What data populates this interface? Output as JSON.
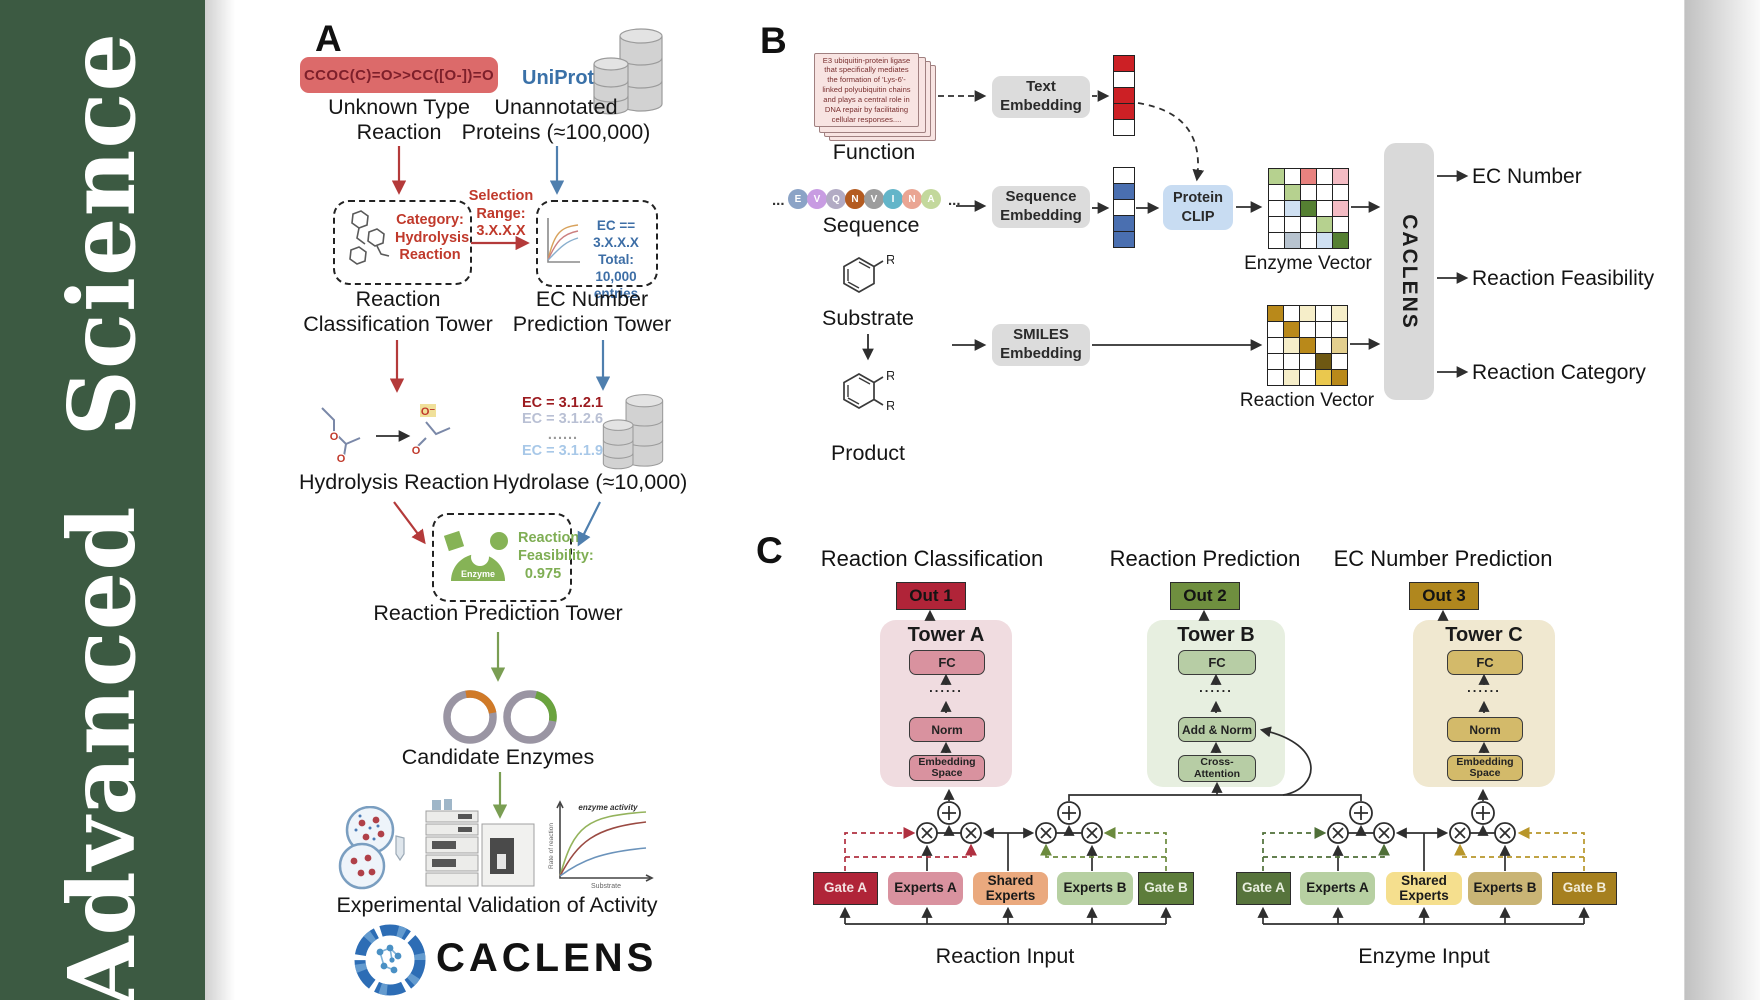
{
  "sidebar": {
    "text": "Advanced Science",
    "bg_color": "#3c5a42",
    "text_color": "#ffffff"
  },
  "panel_a": {
    "label": "A",
    "smiles": "CCOC(C)=O>>CC([O-])=O",
    "unknown_type": [
      "Unknown Type",
      "Reaction"
    ],
    "uniprot": "UniProt",
    "unannotated": [
      "Unannotated",
      "Proteins (≈100,000)"
    ],
    "category_box": [
      "Category:",
      "Hydrolysis",
      "Reaction"
    ],
    "selection": [
      "Selection",
      "Range:",
      "3.X.X.X"
    ],
    "ec_box": [
      "EC == 3.X.X.X",
      "Total: 10,000",
      "entries"
    ],
    "classification_tower": [
      "Reaction",
      "Classification Tower"
    ],
    "ec_tower": [
      "EC Number",
      "Prediction Tower"
    ],
    "hydrolysis": "Hydrolysis Reaction",
    "ec_list": [
      "EC = 3.1.2.1",
      "EC = 3.1.2.6",
      "......",
      "EC = 3.1.1.9"
    ],
    "hydrolase": "Hydrolase (≈10,000)",
    "enzyme_label": "Enzyme",
    "feasibility": [
      "Reaction",
      "Feasibility:",
      "0.975"
    ],
    "prediction_tower": "Reaction Prediction Tower",
    "candidate": "Candidate Enzymes",
    "validation": "Experimental Validation of Activity",
    "activity_plot": {
      "title": "enzyme activity",
      "ylabel": "Rate of reaction",
      "xlabel": "Substrate"
    },
    "logo": "CACLENS"
  },
  "panel_b": {
    "label": "B",
    "function_card": "E3 ubiquitin-protein ligase that specifically mediates the formation of 'Lys-6'-linked polyubiquitin chains and plays a central role in DNA repair by facilitating cellular responses....",
    "function_label": "Function",
    "sequence_letters": [
      "E",
      "V",
      "Q",
      "N",
      "V",
      "I",
      "N",
      "A"
    ],
    "ellipsis": "...",
    "sequence_label": "Sequence",
    "substrate_label": "Substrate",
    "product_label": "Product",
    "r_label": "R",
    "text_embedding": [
      "Text",
      "Embedding"
    ],
    "sequence_embedding": [
      "Sequence",
      "Embedding"
    ],
    "smiles_embedding": [
      "SMILES",
      "Embedding"
    ],
    "protein_clip": [
      "Protein",
      "CLIP"
    ],
    "enzyme_vector_label": "Enzyme Vector",
    "reaction_vector_label": "Reaction Vector",
    "caclens_bar": "CACLENS",
    "outputs": [
      "EC Number",
      "Reaction Feasibility",
      "Reaction Category"
    ],
    "text_vector": [
      "r",
      "w",
      "r",
      "r",
      "w"
    ],
    "seq_vector": [
      "w",
      "b",
      "w",
      "b",
      "b"
    ],
    "enzyme_matrix": [
      [
        "lg",
        "w",
        "sa",
        "w",
        "pk"
      ],
      [
        "w",
        "lg",
        "w",
        "w",
        "w"
      ],
      [
        "w",
        "lb",
        "dg",
        "w",
        "pk"
      ],
      [
        "w",
        "w",
        "w",
        "lg",
        "w"
      ],
      [
        "w",
        "gb",
        "w",
        "lb",
        "dg"
      ]
    ],
    "reaction_matrix": [
      [
        "go",
        "w",
        "ly",
        "w",
        "ly"
      ],
      [
        "w",
        "go",
        "w",
        "w",
        "w"
      ],
      [
        "w",
        "ly",
        "go",
        "w",
        "kh"
      ],
      [
        "w",
        "w",
        "w",
        "do",
        "w"
      ],
      [
        "w",
        "ly",
        "w",
        "yl",
        "go"
      ]
    ]
  },
  "panel_c": {
    "label": "C",
    "headers": [
      "Reaction Classification",
      "Reaction Prediction",
      "EC Number Prediction"
    ],
    "outs": [
      "Out 1",
      "Out 2",
      "Out 3"
    ],
    "towers": [
      {
        "name": "Tower A",
        "layers": [
          "FC",
          "......",
          "Norm",
          "Embedding Space"
        ]
      },
      {
        "name": "Tower B",
        "layers": [
          "FC",
          "......",
          "Add & Norm",
          "Cross-Attention"
        ]
      },
      {
        "name": "Tower C",
        "layers": [
          "FC",
          "......",
          "Norm",
          "Embedding Space"
        ]
      }
    ],
    "moe_boxes": [
      "Gate A",
      "Experts A",
      "Shared Experts",
      "Experts B",
      "Gate B"
    ],
    "reaction_input": "Reaction Input",
    "enzyme_input": "Enzyme Input"
  },
  "colors": {
    "sidebar_green": "#3c5a42",
    "smiles_box_red": "#dc6a6a",
    "arrow_red": "#b43a3a",
    "arrow_blue": "#4f7fae",
    "arrow_green": "#7a9e53",
    "out1_red": "#b02438",
    "out2_green": "#6f8f3f",
    "out3_gold": "#b0871e",
    "tower_a_bg": "#f0dce0",
    "tower_b_bg": "#e7efe0",
    "tower_c_bg": "#f0e8d0",
    "gate_a_reaction": "#b02438",
    "experts_a_reaction": "#d9929f",
    "shared_experts_reaction": "#eaa97e",
    "experts_b_reaction": "#b7d0a2",
    "gate_b_reaction": "#5d7d3b",
    "gate_a_enzyme": "#57743c",
    "experts_a_enzyme": "#b7d0a2",
    "shared_experts_enzyme": "#f5df8e",
    "experts_b_enzyme": "#c9b475",
    "gate_b_enzyme": "#a6801f",
    "protein_clip_bg": "#c8dcf2",
    "embedding_box_bg": "#dcdcdc"
  }
}
